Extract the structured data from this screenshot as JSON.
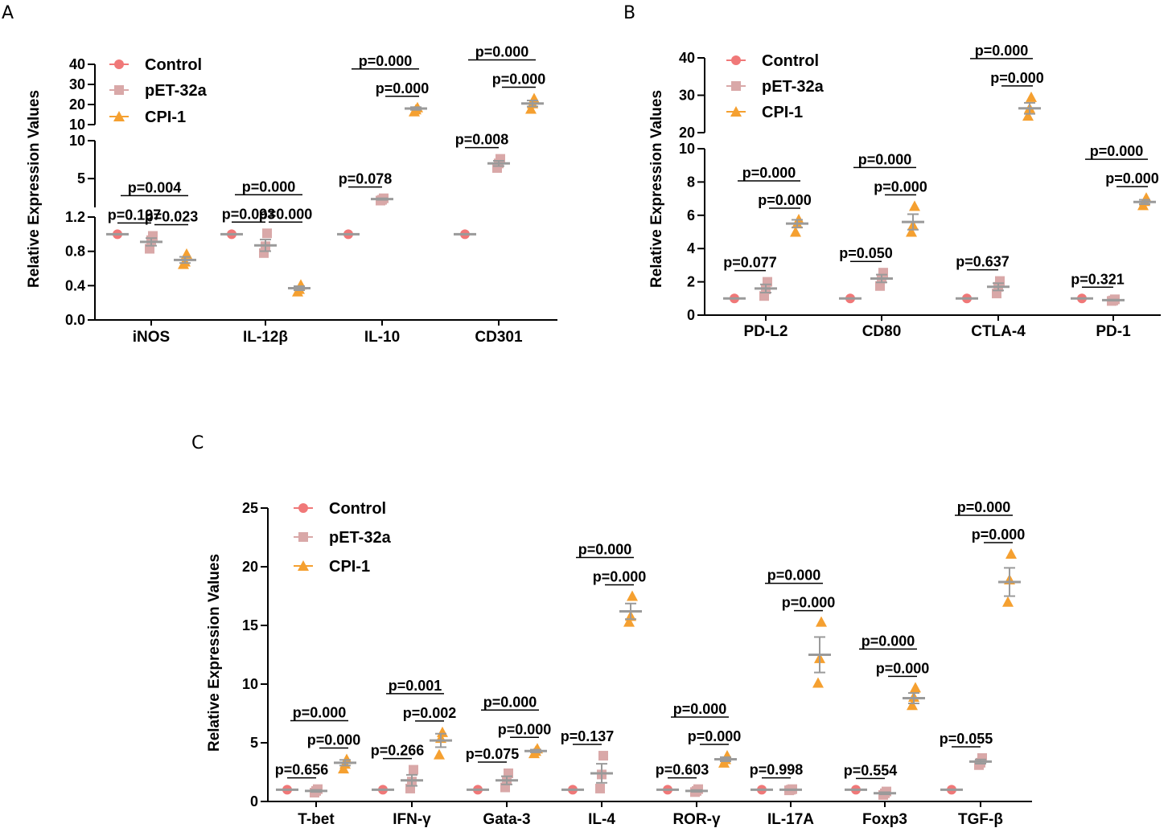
{
  "figure": {
    "panel_letters": [
      "A",
      "B",
      "C"
    ]
  },
  "colors": {
    "control": "#f07878",
    "pet": "#d9a8a8",
    "cpi": "#f5a030",
    "mean": "#9a9a9a",
    "axis": "#000000"
  },
  "chart_data": [
    {
      "id": "A",
      "type": "scatter",
      "ylabel": "Relative Expression Values",
      "legend": [
        "Control",
        "pET-32a",
        "CPI-1"
      ],
      "y_segments": [
        {
          "range": [
            0,
            1.2
          ],
          "ticks": [
            "0.0",
            "0.4",
            "0.8",
            "1.2"
          ]
        },
        {
          "range": [
            1.2,
            10
          ],
          "ticks": [
            "5",
            "10"
          ]
        },
        {
          "range": [
            10,
            40
          ],
          "ticks": [
            "10",
            "20",
            "30",
            "40"
          ]
        }
      ],
      "categories": [
        "iNOS",
        "IL-12β",
        "IL-10",
        "CD301"
      ],
      "groups": [
        {
          "name": "iNOS",
          "control": {
            "mean": 1.0,
            "points": [
              1.0
            ]
          },
          "pet": {
            "mean": 0.91,
            "points": [
              0.98,
              0.93,
              0.83
            ]
          },
          "cpi": {
            "mean": 0.7,
            "points": [
              0.77,
              0.68,
              0.65
            ]
          },
          "pvalues": [
            {
              "label": "p=0.197",
              "pair": "control-pet"
            },
            {
              "label": "p=0.004",
              "pair": "control-cpi"
            },
            {
              "label": "p=0.023",
              "pair": "pet-cpi"
            }
          ]
        },
        {
          "name": "IL-12β",
          "control": {
            "mean": 1.0,
            "points": [
              1.0
            ]
          },
          "pet": {
            "mean": 0.87,
            "points": [
              1.01,
              0.86,
              0.78
            ]
          },
          "cpi": {
            "mean": 0.37,
            "points": [
              0.41,
              0.36,
              0.33
            ]
          },
          "pvalues": [
            {
              "label": "p=0.093",
              "pair": "control-pet"
            },
            {
              "label": "p=0.000",
              "pair": "control-cpi"
            },
            {
              "label": "p=0.000",
              "pair": "pet-cpi"
            }
          ]
        },
        {
          "name": "IL-10",
          "control": {
            "mean": 1.0,
            "points": [
              1.0
            ]
          },
          "pet": {
            "mean": 2.3,
            "points": [
              2.4,
              2.2,
              2.1
            ]
          },
          "cpi": {
            "mean": 18,
            "points": [
              18.5,
              17.5,
              16.5
            ]
          },
          "pvalues": [
            {
              "label": "p=0.078",
              "pair": "control-pet"
            },
            {
              "label": "p=0.000",
              "pair": "control-cpi"
            },
            {
              "label": "p=0.000",
              "pair": "pet-cpi"
            }
          ]
        },
        {
          "name": "CD301",
          "control": {
            "mean": 1.0,
            "points": [
              1.0
            ]
          },
          "pet": {
            "mean": 7.0,
            "points": [
              7.6,
              7.0,
              6.4
            ]
          },
          "cpi": {
            "mean": 20.5,
            "points": [
              23,
              20.5,
              17.8
            ]
          },
          "pvalues": [
            {
              "label": "p=0.008",
              "pair": "control-pet"
            },
            {
              "label": "p=0.000",
              "pair": "control-cpi"
            },
            {
              "label": "p=0.000",
              "pair": "pet-cpi"
            }
          ]
        }
      ]
    },
    {
      "id": "B",
      "type": "scatter",
      "ylabel": "Relative Expression Values",
      "legend": [
        "Control",
        "pET-32a",
        "CPI-1"
      ],
      "y_segments": [
        {
          "range": [
            0,
            10
          ],
          "ticks": [
            "0",
            "2",
            "4",
            "6",
            "8",
            "10"
          ]
        },
        {
          "range": [
            20,
            40
          ],
          "ticks": [
            "20",
            "30",
            "40"
          ]
        }
      ],
      "categories": [
        "PD-L2",
        "CD80",
        "CTLA-4",
        "PD-1"
      ],
      "groups": [
        {
          "name": "PD-L2",
          "control": {
            "mean": 1.0,
            "points": [
              1.0
            ]
          },
          "pet": {
            "mean": 1.6,
            "points": [
              2.0,
              1.55,
              1.15
            ]
          },
          "cpi": {
            "mean": 5.5,
            "points": [
              5.75,
              5.5,
              5.0
            ]
          },
          "pvalues": [
            {
              "label": "p=0.077",
              "pair": "control-pet"
            },
            {
              "label": "p=0.000",
              "pair": "control-cpi"
            },
            {
              "label": "p=0.000",
              "pair": "pet-cpi"
            }
          ]
        },
        {
          "name": "CD80",
          "control": {
            "mean": 1.0,
            "points": [
              1.0
            ]
          },
          "pet": {
            "mean": 2.2,
            "points": [
              2.55,
              2.2,
              1.75
            ]
          },
          "cpi": {
            "mean": 5.6,
            "points": [
              6.55,
              5.4,
              5.0
            ]
          },
          "pvalues": [
            {
              "label": "p=0.050",
              "pair": "control-pet"
            },
            {
              "label": "p=0.000",
              "pair": "control-cpi"
            },
            {
              "label": "p=0.000",
              "pair": "pet-cpi"
            }
          ]
        },
        {
          "name": "CTLA-4",
          "control": {
            "mean": 1.0,
            "points": [
              1.0
            ]
          },
          "pet": {
            "mean": 1.7,
            "points": [
              2.05,
              1.7,
              1.3
            ]
          },
          "cpi": {
            "mean": 26.5,
            "points": [
              29.5,
              26.5,
              24.5
            ]
          },
          "pvalues": [
            {
              "label": "p=0.637",
              "pair": "control-pet"
            },
            {
              "label": "p=0.000",
              "pair": "control-cpi"
            },
            {
              "label": "p=0.000",
              "pair": "pet-cpi"
            }
          ]
        },
        {
          "name": "PD-1",
          "control": {
            "mean": 1.0,
            "points": [
              1.0
            ]
          },
          "pet": {
            "mean": 0.9,
            "points": [
              0.95,
              0.88,
              0.85
            ]
          },
          "cpi": {
            "mean": 6.8,
            "points": [
              7.05,
              6.85,
              6.6
            ]
          },
          "pvalues": [
            {
              "label": "p=0.321",
              "pair": "control-pet"
            },
            {
              "label": "p=0.000",
              "pair": "control-cpi"
            },
            {
              "label": "p=0.000",
              "pair": "pet-cpi"
            }
          ]
        }
      ]
    },
    {
      "id": "C",
      "type": "scatter",
      "ylabel": "Relative Expression Values",
      "legend": [
        "Control",
        "pET-32a",
        "CPI-1"
      ],
      "y_segments": [
        {
          "range": [
            0,
            25
          ],
          "ticks": [
            "0",
            "5",
            "10",
            "15",
            "20",
            "25"
          ]
        }
      ],
      "categories": [
        "T-bet",
        "IFN-γ",
        "Gata-3",
        "IL-4",
        "ROR-γ",
        "IL-17A",
        "Foxp3",
        "TGF-β"
      ],
      "groups": [
        {
          "name": "T-bet",
          "control": {
            "mean": 1.0,
            "points": [
              1.0
            ]
          },
          "pet": {
            "mean": 0.9,
            "points": [
              1.05,
              0.9,
              0.75
            ]
          },
          "cpi": {
            "mean": 3.3,
            "points": [
              3.6,
              3.2,
              2.8
            ]
          },
          "pvalues": [
            {
              "label": "p=0.656",
              "pair": "control-pet"
            },
            {
              "label": "p=0.000",
              "pair": "control-cpi"
            },
            {
              "label": "p=0.000",
              "pair": "pet-cpi"
            }
          ]
        },
        {
          "name": "IFN-γ",
          "control": {
            "mean": 1.0,
            "points": [
              1.0
            ]
          },
          "pet": {
            "mean": 1.8,
            "points": [
              2.7,
              1.7,
              1.1
            ]
          },
          "cpi": {
            "mean": 5.2,
            "points": [
              5.9,
              5.4,
              4.0
            ]
          },
          "pvalues": [
            {
              "label": "p=0.266",
              "pair": "control-pet"
            },
            {
              "label": "p=0.001",
              "pair": "control-cpi"
            },
            {
              "label": "p=0.002",
              "pair": "pet-cpi"
            }
          ]
        },
        {
          "name": "Gata-3",
          "control": {
            "mean": 1.0,
            "points": [
              1.0
            ]
          },
          "pet": {
            "mean": 1.8,
            "points": [
              2.4,
              1.8,
              1.2
            ]
          },
          "cpi": {
            "mean": 4.3,
            "points": [
              4.5,
              4.3,
              4.1
            ]
          },
          "pvalues": [
            {
              "label": "p=0.075",
              "pair": "control-pet"
            },
            {
              "label": "p=0.000",
              "pair": "control-cpi"
            },
            {
              "label": "p=0.000",
              "pair": "pet-cpi"
            }
          ]
        },
        {
          "name": "IL-4",
          "control": {
            "mean": 1.0,
            "points": [
              1.0
            ]
          },
          "pet": {
            "mean": 2.4,
            "points": [
              3.9,
              2.3,
              1.1
            ]
          },
          "cpi": {
            "mean": 16.2,
            "points": [
              17.5,
              15.8,
              15.3
            ]
          },
          "pvalues": [
            {
              "label": "p=0.137",
              "pair": "control-pet"
            },
            {
              "label": "p=0.000",
              "pair": "control-cpi"
            },
            {
              "label": "p=0.000",
              "pair": "pet-cpi"
            }
          ]
        },
        {
          "name": "ROR-γ",
          "control": {
            "mean": 1.0,
            "points": [
              1.0
            ]
          },
          "pet": {
            "mean": 0.9,
            "points": [
              1.05,
              0.9,
              0.8
            ]
          },
          "cpi": {
            "mean": 3.6,
            "points": [
              3.9,
              3.6,
              3.3
            ]
          },
          "pvalues": [
            {
              "label": "p=0.603",
              "pair": "control-pet"
            },
            {
              "label": "p=0.000",
              "pair": "control-cpi"
            },
            {
              "label": "p=0.000",
              "pair": "pet-cpi"
            }
          ]
        },
        {
          "name": "IL-17A",
          "control": {
            "mean": 1.0,
            "points": [
              1.0
            ]
          },
          "pet": {
            "mean": 1.0,
            "points": [
              1.05,
              1.0,
              0.95
            ]
          },
          "cpi": {
            "mean": 12.5,
            "points": [
              15.3,
              12.2,
              10.1
            ]
          },
          "pvalues": [
            {
              "label": "p=0.998",
              "pair": "control-pet"
            },
            {
              "label": "p=0.000",
              "pair": "control-cpi"
            },
            {
              "label": "p=0.000",
              "pair": "pet-cpi"
            }
          ]
        },
        {
          "name": "Foxp3",
          "control": {
            "mean": 1.0,
            "points": [
              1.0
            ]
          },
          "pet": {
            "mean": 0.7,
            "points": [
              0.85,
              0.7,
              0.55
            ]
          },
          "cpi": {
            "mean": 8.8,
            "points": [
              9.7,
              8.9,
              8.2
            ]
          },
          "pvalues": [
            {
              "label": "p=0.554",
              "pair": "control-pet"
            },
            {
              "label": "p=0.000",
              "pair": "control-cpi"
            },
            {
              "label": "p=0.000",
              "pair": "pet-cpi"
            }
          ]
        },
        {
          "name": "TGF-β",
          "control": {
            "mean": 1.0,
            "points": [
              1.0
            ]
          },
          "pet": {
            "mean": 3.4,
            "points": [
              3.7,
              3.3,
              3.1
            ]
          },
          "cpi": {
            "mean": 18.7,
            "points": [
              21.1,
              18.9,
              17.0
            ]
          },
          "pvalues": [
            {
              "label": "p=0.055",
              "pair": "control-pet"
            },
            {
              "label": "p=0.000",
              "pair": "control-cpi"
            },
            {
              "label": "p=0.000",
              "pair": "pet-cpi"
            }
          ]
        }
      ]
    }
  ]
}
